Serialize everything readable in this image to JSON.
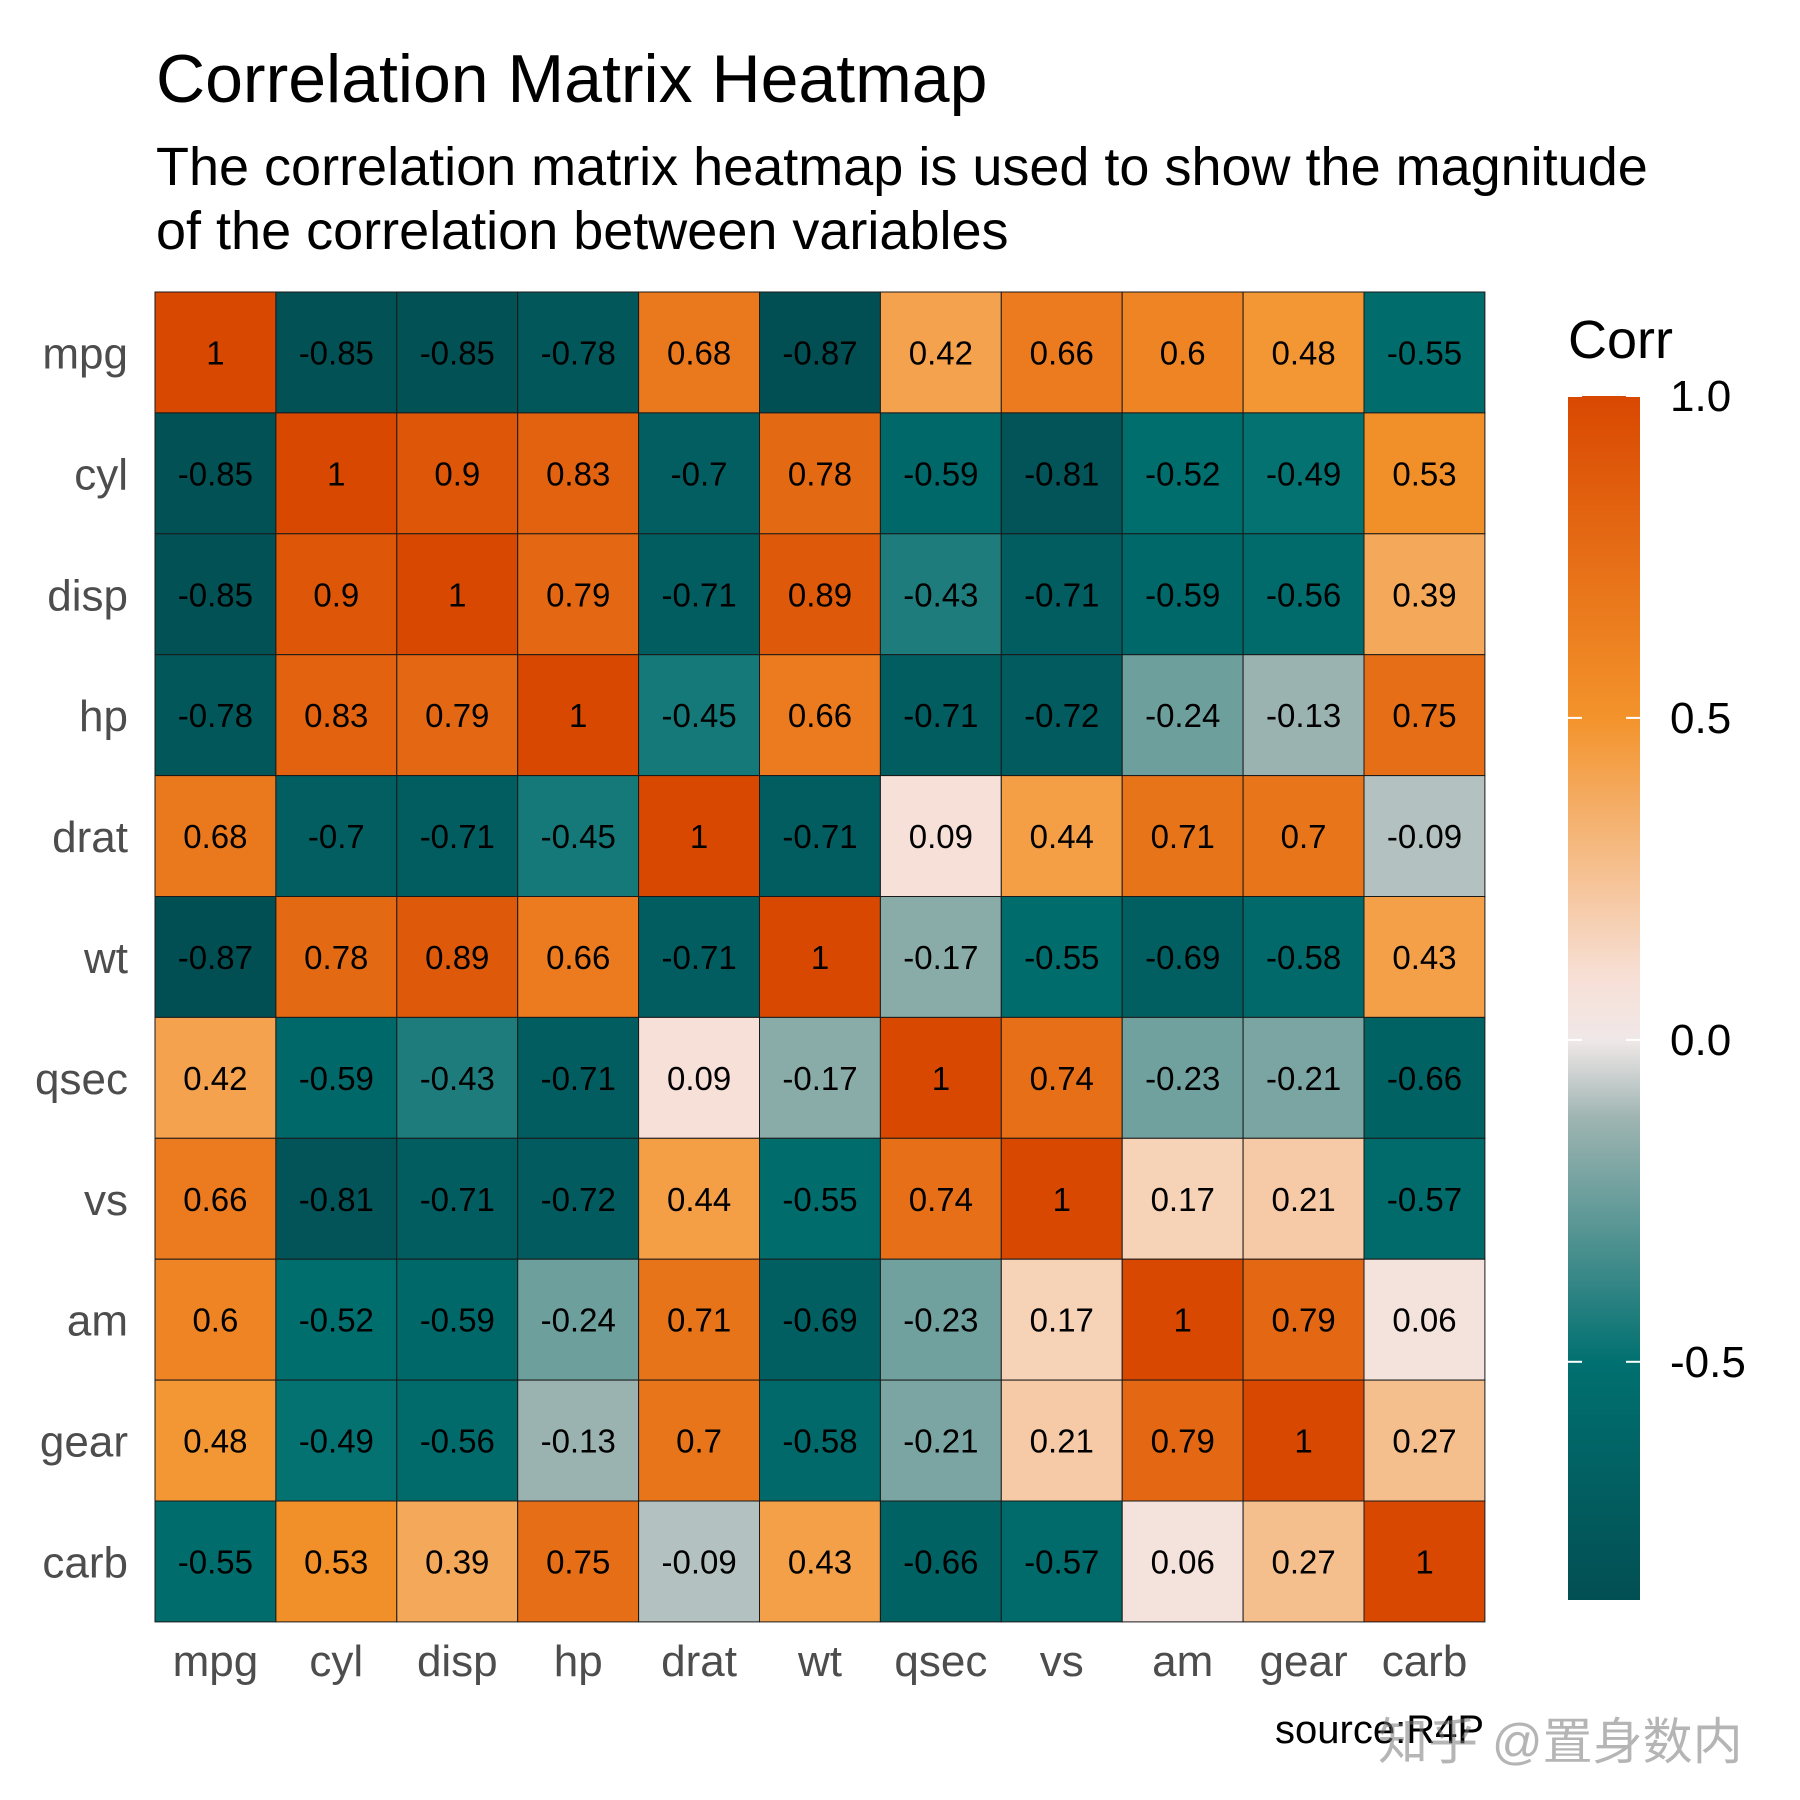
{
  "title": "Correlation Matrix Heatmap",
  "subtitle_line1": "The correlation matrix heatmap is used to show the magnitude",
  "subtitle_line2": "of the correlation between variables",
  "source": "source:R4P",
  "watermark": "知乎 @置身数内",
  "colors": {
    "high": "#d94801",
    "mid_high": "#f3932b",
    "low_pos": "#f7dfd5",
    "zero": "#f0e8e8",
    "low_neg": "#9fb5b2",
    "mid_neg": "#017070",
    "low": "#024f53"
  },
  "chart_data": {
    "type": "heatmap",
    "title": "Correlation Matrix Heatmap",
    "variables": [
      "mpg",
      "cyl",
      "disp",
      "hp",
      "drat",
      "wt",
      "qsec",
      "vs",
      "am",
      "gear",
      "carb"
    ],
    "values": [
      [
        1,
        -0.85,
        -0.85,
        -0.78,
        0.68,
        -0.87,
        0.42,
        0.66,
        0.6,
        0.48,
        -0.55
      ],
      [
        -0.85,
        1,
        0.9,
        0.83,
        -0.7,
        0.78,
        -0.59,
        -0.81,
        -0.52,
        -0.49,
        0.53
      ],
      [
        -0.85,
        0.9,
        1,
        0.79,
        -0.71,
        0.89,
        -0.43,
        -0.71,
        -0.59,
        -0.56,
        0.39
      ],
      [
        -0.78,
        0.83,
        0.79,
        1,
        -0.45,
        0.66,
        -0.71,
        -0.72,
        -0.24,
        -0.13,
        0.75
      ],
      [
        0.68,
        -0.7,
        -0.71,
        -0.45,
        1,
        -0.71,
        0.09,
        0.44,
        0.71,
        0.7,
        -0.09
      ],
      [
        -0.87,
        0.78,
        0.89,
        0.66,
        -0.71,
        1,
        -0.17,
        -0.55,
        -0.69,
        -0.58,
        0.43
      ],
      [
        0.42,
        -0.59,
        -0.43,
        -0.71,
        0.09,
        -0.17,
        1,
        0.74,
        -0.23,
        -0.21,
        -0.66
      ],
      [
        0.66,
        -0.81,
        -0.71,
        -0.72,
        0.44,
        -0.55,
        0.74,
        1,
        0.17,
        0.21,
        -0.57
      ],
      [
        0.6,
        -0.52,
        -0.59,
        -0.24,
        0.71,
        -0.69,
        -0.23,
        0.17,
        1,
        0.79,
        0.06
      ],
      [
        0.48,
        -0.49,
        -0.56,
        -0.13,
        0.7,
        -0.58,
        -0.21,
        0.21,
        0.79,
        1,
        0.27
      ],
      [
        -0.55,
        0.53,
        0.39,
        0.75,
        -0.09,
        0.43,
        -0.66,
        -0.57,
        0.06,
        0.27,
        1
      ]
    ],
    "legend": {
      "title": "Corr",
      "ticks": [
        1.0,
        0.5,
        0.0,
        -0.5
      ],
      "tick_labels": [
        "1.0",
        "0.5",
        "0.0",
        "-0.5"
      ],
      "range": [
        -0.87,
        1.0
      ],
      "placement": "right"
    }
  }
}
